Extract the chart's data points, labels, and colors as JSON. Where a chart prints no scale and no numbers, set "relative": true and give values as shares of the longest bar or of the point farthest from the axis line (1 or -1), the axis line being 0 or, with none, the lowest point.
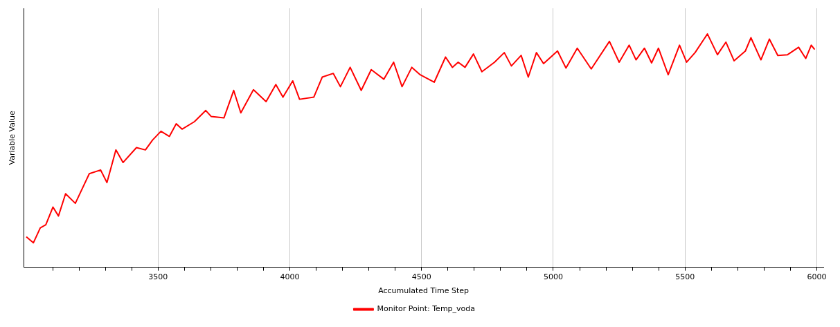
{
  "chart_data": {
    "type": "line",
    "relative": true,
    "xlabel": "Accumulated Time Step",
    "ylabel": "Variable Value",
    "xlim": [
      2990,
      6025
    ],
    "xticks": [
      {
        "value": 3100,
        "label": null
      },
      {
        "value": 3200,
        "label": null
      },
      {
        "value": 3300,
        "label": null
      },
      {
        "value": 3400,
        "label": null
      },
      3500,
      {
        "value": 3600,
        "label": null
      },
      {
        "value": 3700,
        "label": null
      },
      {
        "value": 3800,
        "label": null
      },
      {
        "value": 3900,
        "label": null
      },
      4000,
      {
        "value": 4100,
        "label": null
      },
      {
        "value": 4200,
        "label": null
      },
      {
        "value": 4300,
        "label": null
      },
      {
        "value": 4400,
        "label": null
      },
      4500,
      {
        "value": 4600,
        "label": null
      },
      {
        "value": 4700,
        "label": null
      },
      {
        "value": 4800,
        "label": null
      },
      {
        "value": 4900,
        "label": null
      },
      5000,
      {
        "value": 5100,
        "label": null
      },
      {
        "value": 5200,
        "label": null
      },
      {
        "value": 5300,
        "label": null
      },
      {
        "value": 5400,
        "label": null
      },
      5500,
      {
        "value": 5600,
        "label": null
      },
      {
        "value": 5700,
        "label": null
      },
      {
        "value": 5800,
        "label": null
      },
      {
        "value": 5900,
        "label": null
      },
      6000
    ],
    "grid": "x",
    "legend": "bottom",
    "marker": "none",
    "line_style": "solid",
    "series": [
      {
        "name": "Monitor Point: Temp_voda",
        "color": "#ff0000",
        "x": [
          3000,
          3027,
          3053,
          3074,
          3101,
          3122,
          3149,
          3186,
          3239,
          3282,
          3306,
          3340,
          3367,
          3418,
          3452,
          3479,
          3511,
          3543,
          3569,
          3591,
          3638,
          3681,
          3702,
          3750,
          3787,
          3814,
          3862,
          3910,
          3947,
          3974,
          4011,
          4037,
          4091,
          4123,
          4165,
          4192,
          4229,
          4271,
          4309,
          4357,
          4394,
          4426,
          4463,
          4495,
          4548,
          4591,
          4617,
          4639,
          4665,
          4697,
          4729,
          4777,
          4814,
          4841,
          4878,
          4905,
          4936,
          4963,
          5016,
          5048,
          5091,
          5144,
          5213,
          5250,
          5288,
          5314,
          5346,
          5373,
          5399,
          5436,
          5479,
          5506,
          5538,
          5585,
          5623,
          5655,
          5686,
          5729,
          5750,
          5788,
          5820,
          5852,
          5889,
          5931,
          5958,
          5979,
          5992
        ],
        "values": [
          0.131,
          0.105,
          0.169,
          0.182,
          0.258,
          0.22,
          0.315,
          0.274,
          0.401,
          0.417,
          0.363,
          0.503,
          0.449,
          0.513,
          0.503,
          0.545,
          0.583,
          0.561,
          0.615,
          0.592,
          0.624,
          0.672,
          0.646,
          0.64,
          0.758,
          0.662,
          0.761,
          0.71,
          0.783,
          0.729,
          0.799,
          0.72,
          0.729,
          0.815,
          0.831,
          0.774,
          0.857,
          0.758,
          0.847,
          0.806,
          0.879,
          0.774,
          0.857,
          0.825,
          0.793,
          0.901,
          0.857,
          0.879,
          0.857,
          0.914,
          0.838,
          0.879,
          0.92,
          0.863,
          0.908,
          0.815,
          0.92,
          0.873,
          0.927,
          0.854,
          0.939,
          0.85,
          0.968,
          0.879,
          0.952,
          0.889,
          0.939,
          0.876,
          0.939,
          0.825,
          0.952,
          0.879,
          0.92,
          1,
          0.911,
          0.965,
          0.885,
          0.927,
          0.984,
          0.889,
          0.978,
          0.908,
          0.911,
          0.943,
          0.895,
          0.952,
          0.933
        ]
      }
    ]
  }
}
